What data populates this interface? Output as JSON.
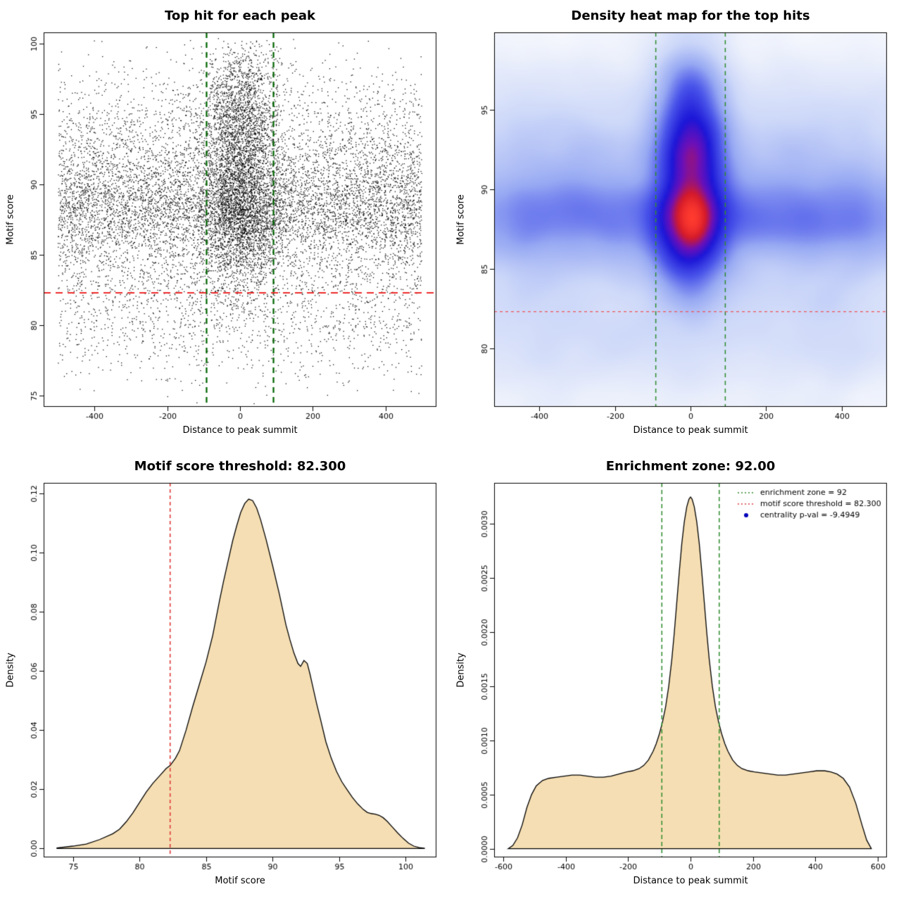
{
  "figure": {
    "background": "#ffffff"
  },
  "charts": [
    {
      "key": "top-hits-scatter",
      "type": "scatter",
      "title": "Top hit for each peak",
      "xlabel": "Distance to peak summit",
      "ylabel": "Motif score",
      "xlim": [
        -540,
        540
      ],
      "ylim": [
        74.2,
        100.8
      ],
      "xticks": {
        "values": [
          -400,
          -200,
          0,
          200,
          400
        ],
        "labels": [
          "-400",
          "-200",
          "0",
          "200",
          "400"
        ]
      },
      "yticks": {
        "values": [
          75,
          80,
          85,
          90,
          95,
          100
        ],
        "labels": [
          "75",
          "80",
          "85",
          "90",
          "95",
          "100"
        ]
      },
      "point_color": "#000000",
      "vlines": [
        {
          "x": -92,
          "color": "#006400",
          "width": 2.2,
          "dash": [
            8,
            6
          ]
        },
        {
          "x": 92,
          "color": "#006400",
          "width": 2.2,
          "dash": [
            8,
            6
          ]
        }
      ],
      "hlines": [
        {
          "y": 82.3,
          "color": "#ee2c2c",
          "width": 2.2,
          "dash": [
            10,
            7
          ]
        }
      ],
      "generator": {
        "seed": 1234,
        "y_range": [
          74.4,
          100.4
        ],
        "background": {
          "n": 9800,
          "x_uniform": [
            -500,
            500
          ],
          "y_mixture": [
            {
              "w": 0.38,
              "mean": 88.2,
              "sd": 1.6
            },
            {
              "w": 0.22,
              "mean": 91.2,
              "sd": 2.1
            },
            {
              "w": 0.16,
              "mean": 85.2,
              "sd": 2.2
            },
            {
              "w": 0.11,
              "mean": 94.6,
              "sd": 2.4
            },
            {
              "w": 0.13,
              "mean": 80.6,
              "sd": 2.4
            }
          ]
        },
        "cluster": {
          "n": 4300,
          "x_normal": {
            "mean": 4,
            "sd": 52
          },
          "x_trunc": 165,
          "y_mixture": [
            {
              "w": 0.32,
              "mean": 88.6,
              "sd": 1.9
            },
            {
              "w": 0.27,
              "mean": 92.6,
              "sd": 2.1
            },
            {
              "w": 0.23,
              "mean": 96.2,
              "sd": 1.9
            },
            {
              "w": 0.18,
              "mean": 85.6,
              "sd": 2.0
            }
          ]
        }
      }
    },
    {
      "key": "top-hits-heatmap",
      "type": "heatmap",
      "title": "Density heat map for the top hits",
      "xlabel": "Distance to peak summit",
      "ylabel": "Motif score",
      "xlim": [
        -520,
        520
      ],
      "ylim": [
        76.3,
        99.9
      ],
      "xticks": {
        "values": [
          -400,
          -200,
          0,
          200,
          400
        ],
        "labels": [
          "-400",
          "-200",
          "0",
          "200",
          "400"
        ]
      },
      "yticks": {
        "values": [
          80,
          85,
          90,
          95
        ],
        "labels": [
          "80",
          "85",
          "90",
          "95"
        ]
      },
      "grid": 120,
      "blur_radius": 3,
      "blur_passes": 3,
      "gamma": 0.5,
      "colormap": [
        [
          0.0,
          "#ffffff"
        ],
        [
          0.12,
          "#edf1fc"
        ],
        [
          0.28,
          "#cdd8f9"
        ],
        [
          0.45,
          "#97a9f3"
        ],
        [
          0.6,
          "#4a55ea"
        ],
        [
          0.75,
          "#1c16d8"
        ],
        [
          0.85,
          "#6d10b8"
        ],
        [
          0.93,
          "#d41a2a"
        ],
        [
          1.0,
          "#ff3b2f"
        ]
      ],
      "vlines": [
        {
          "x": -92,
          "color": "#2e8b2e",
          "width": 1.5,
          "dash": [
            6,
            5
          ]
        },
        {
          "x": 92,
          "color": "#2e8b2e",
          "width": 1.5,
          "dash": [
            6,
            5
          ]
        }
      ],
      "hlines": [
        {
          "y": 82.3,
          "color": "#f05050",
          "width": 1.2,
          "dash": [
            4,
            4
          ]
        }
      ],
      "generator": {
        "seed": 777,
        "y_range": [
          76.0,
          100.3
        ],
        "background": {
          "n": 26000,
          "x_uniform": [
            -510,
            510
          ],
          "y_mixture": [
            {
              "w": 0.38,
              "mean": 88.2,
              "sd": 1.6
            },
            {
              "w": 0.22,
              "mean": 91.2,
              "sd": 2.1
            },
            {
              "w": 0.16,
              "mean": 85.2,
              "sd": 2.2
            },
            {
              "w": 0.11,
              "mean": 94.6,
              "sd": 2.4
            },
            {
              "w": 0.13,
              "mean": 80.6,
              "sd": 2.4
            }
          ]
        },
        "cluster": {
          "n": 11500,
          "x_normal": {
            "mean": 2,
            "sd": 48
          },
          "x_trunc": 150,
          "y_mixture": [
            {
              "w": 0.34,
              "mean": 88.3,
              "sd": 1.7
            },
            {
              "w": 0.29,
              "mean": 92.4,
              "sd": 1.6
            },
            {
              "w": 0.2,
              "mean": 96.0,
              "sd": 1.9
            },
            {
              "w": 0.17,
              "mean": 85.8,
              "sd": 1.9
            }
          ]
        }
      }
    },
    {
      "key": "motif-score-density",
      "type": "density",
      "title": "Motif score threshold: 82.300",
      "xlabel": "Motif score",
      "ylabel": "Density",
      "xlim": [
        72.8,
        102.3
      ],
      "ylim": [
        -0.003,
        0.1235
      ],
      "xticks": {
        "values": [
          75,
          80,
          85,
          90,
          95,
          100
        ],
        "labels": [
          "75",
          "80",
          "85",
          "90",
          "95",
          "100"
        ]
      },
      "yticks": {
        "values": [
          0,
          0.02,
          0.04,
          0.06,
          0.08,
          0.1,
          0.12
        ],
        "labels": [
          "0.00",
          "0.02",
          "0.04",
          "0.06",
          "0.08",
          "0.10",
          "0.12"
        ]
      },
      "fill": "#f5deb3",
      "stroke": "#000000",
      "vlines": [
        {
          "x": 82.3,
          "color": "#e03a3a",
          "width": 1.6,
          "dash": [
            5,
            4
          ]
        }
      ],
      "curve": {
        "x": [
          73.8,
          75,
          76,
          77,
          78,
          78.5,
          79,
          79.5,
          80,
          80.5,
          81,
          81.5,
          82,
          82.3,
          82.7,
          83,
          83.5,
          84,
          84.5,
          85,
          85.5,
          86,
          86.3,
          86.6,
          87,
          87.3,
          87.6,
          87.9,
          88.2,
          88.5,
          88.8,
          89.1,
          89.5,
          90,
          90.5,
          91,
          91.3,
          91.6,
          91.9,
          92.1,
          92.35,
          92.6,
          92.8,
          93,
          93.3,
          93.6,
          94,
          94.4,
          94.8,
          95.2,
          95.6,
          96,
          96.4,
          96.8,
          97.1,
          97.4,
          97.7,
          98,
          98.3,
          98.6,
          99,
          99.4,
          99.8,
          100.2,
          100.6,
          101,
          101.4
        ],
        "y": [
          0.0002,
          0.0008,
          0.0015,
          0.003,
          0.005,
          0.0065,
          0.009,
          0.012,
          0.0155,
          0.019,
          0.022,
          0.0245,
          0.027,
          0.028,
          0.0305,
          0.033,
          0.04,
          0.048,
          0.0555,
          0.063,
          0.072,
          0.0835,
          0.09,
          0.096,
          0.104,
          0.109,
          0.1135,
          0.1165,
          0.118,
          0.1175,
          0.115,
          0.111,
          0.1045,
          0.0955,
          0.086,
          0.0755,
          0.0705,
          0.066,
          0.0625,
          0.0615,
          0.0635,
          0.0625,
          0.059,
          0.055,
          0.049,
          0.0435,
          0.036,
          0.0305,
          0.026,
          0.0225,
          0.0198,
          0.0172,
          0.015,
          0.0132,
          0.0122,
          0.0118,
          0.0116,
          0.0112,
          0.0104,
          0.0092,
          0.0072,
          0.0052,
          0.0034,
          0.0018,
          0.0008,
          0.0003,
          0.0001
        ]
      }
    },
    {
      "key": "summit-distance-density",
      "type": "density",
      "title": "Enrichment zone: 92.00",
      "xlabel": "Distance to peak summit",
      "ylabel": "Density",
      "xlim": [
        -630,
        630
      ],
      "ylim": [
        -8e-05,
        0.00338
      ],
      "xticks": {
        "values": [
          -600,
          -400,
          -200,
          0,
          200,
          400,
          600
        ],
        "labels": [
          "-600",
          "-400",
          "-200",
          "0",
          "200",
          "400",
          "600"
        ]
      },
      "yticks": {
        "values": [
          0,
          0.0005,
          0.001,
          0.0015,
          0.002,
          0.0025,
          0.003
        ],
        "labels": [
          "0.0000",
          "0.0005",
          "0.0010",
          "0.0015",
          "0.0020",
          "0.0025",
          "0.0030"
        ]
      },
      "fill": "#f5deb3",
      "stroke": "#000000",
      "vlines": [
        {
          "x": -92,
          "color": "#2e8b2e",
          "width": 1.5,
          "dash": [
            6,
            4
          ]
        },
        {
          "x": 92,
          "color": "#2e8b2e",
          "width": 1.5,
          "dash": [
            6,
            4
          ]
        }
      ],
      "curve": {
        "x": [
          -585,
          -570,
          -555,
          -540,
          -525,
          -510,
          -495,
          -475,
          -455,
          -430,
          -405,
          -380,
          -355,
          -330,
          -305,
          -280,
          -255,
          -230,
          -205,
          -185,
          -165,
          -150,
          -135,
          -120,
          -110,
          -100,
          -90,
          -80,
          -70,
          -60,
          -52,
          -44,
          -36,
          -28,
          -20,
          -12,
          -5,
          0,
          5,
          12,
          20,
          28,
          36,
          44,
          52,
          60,
          70,
          80,
          90,
          100,
          110,
          120,
          135,
          150,
          165,
          185,
          205,
          230,
          255,
          280,
          305,
          330,
          355,
          380,
          405,
          430,
          450,
          470,
          490,
          510,
          530,
          550,
          565,
          580
        ],
        "y": [
          0.0,
          3e-05,
          0.0001,
          0.00022,
          0.00038,
          0.0005,
          0.00058,
          0.00063,
          0.00065,
          0.00066,
          0.00067,
          0.00068,
          0.00068,
          0.00067,
          0.00066,
          0.00066,
          0.00067,
          0.00069,
          0.00071,
          0.00072,
          0.00074,
          0.00077,
          0.00082,
          0.0009,
          0.00097,
          0.00106,
          0.00117,
          0.00131,
          0.0015,
          0.00175,
          0.002,
          0.00228,
          0.00256,
          0.00282,
          0.00302,
          0.00316,
          0.00323,
          0.00325,
          0.00323,
          0.00316,
          0.00302,
          0.00282,
          0.00256,
          0.00228,
          0.002,
          0.00175,
          0.0015,
          0.00131,
          0.00117,
          0.00106,
          0.00097,
          0.0009,
          0.00082,
          0.00077,
          0.00074,
          0.00072,
          0.00071,
          0.0007,
          0.00069,
          0.00068,
          0.00068,
          0.00069,
          0.0007,
          0.00071,
          0.00072,
          0.00072,
          0.00071,
          0.00069,
          0.00065,
          0.00057,
          0.00042,
          0.00022,
          8e-05,
          0.0
        ]
      },
      "legend": {
        "items": [
          {
            "swatch": "dotted-line",
            "color": "#2e8b2e",
            "label": "enrichment zone = 92"
          },
          {
            "swatch": "dotted-line",
            "color": "#e03a3a",
            "label": "motif score threshold = 82.300"
          },
          {
            "swatch": "point",
            "color": "#0000bb",
            "label": "centrality p-val = -9.4949"
          }
        ]
      }
    }
  ]
}
